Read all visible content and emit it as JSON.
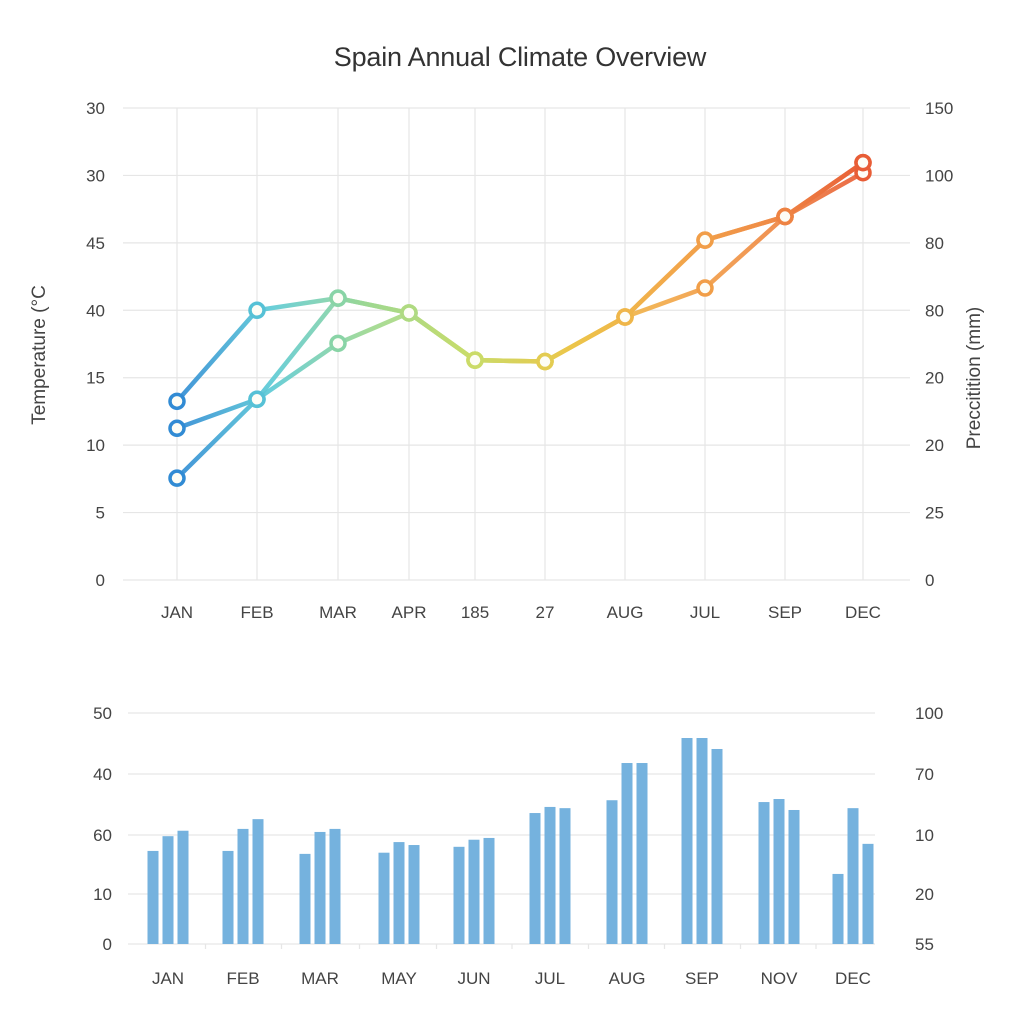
{
  "chart_data": [
    {
      "type": "line",
      "title": "Spain Annual Climate Overview",
      "ylabel": "Temperature (°C",
      "ylabel_right": "Preccitition (mm)",
      "xlabel": "",
      "grid": true,
      "legend": "none",
      "categories": [
        "JAN",
        "FEB",
        "MAR",
        "APR",
        "185",
        "27",
        "AUG",
        "JUL",
        "SEP",
        "DEC"
      ],
      "y_tick_labels_left": [
        "0",
        "5",
        "10",
        "15",
        "40",
        "45",
        "30",
        "30"
      ],
      "y_tick_labels_right": [
        "0",
        "25",
        "20",
        "20",
        "80",
        "80",
        "100",
        "150"
      ],
      "value_units": "grid index (0 = bottom tick, 7 = top tick)",
      "ylim": [
        0,
        7
      ],
      "series": [
        {
          "name": "series-1",
          "color_start": "#2e86d4",
          "values": [
            1.51,
            2.68,
            4.18,
            3.96,
            3.26,
            3.24,
            3.9,
            5.04,
            5.39,
            6.04
          ]
        },
        {
          "name": "series-2",
          "color_start": "#5ccad6",
          "values": [
            2.25,
            2.68,
            3.51,
            3.96,
            3.26,
            3.24,
            3.9,
            4.33,
            5.39,
            6.19
          ]
        },
        {
          "name": "series-3",
          "color_start": "#8fd49c",
          "values": [
            2.65,
            4.0,
            4.18,
            3.96,
            3.26,
            3.24,
            3.9,
            5.04,
            5.39,
            6.19
          ]
        }
      ],
      "gradient_colors": [
        "#2e86d4",
        "#5ccad6",
        "#9ed88f",
        "#c9dc6a",
        "#ecc64a",
        "#f2a84a",
        "#ef8a45",
        "#e85a35"
      ]
    },
    {
      "type": "bar",
      "title": "",
      "xlabel": "",
      "ylabel": "",
      "grid": true,
      "legend": "none",
      "categories": [
        "JAN",
        "FEB",
        "MAR",
        "MAY",
        "JUN",
        "JUL",
        "AUG",
        "SEP",
        "NOV",
        "DEC"
      ],
      "y_tick_labels_left": [
        "0",
        "10",
        "60",
        "40",
        "50"
      ],
      "y_tick_labels_right": [
        "55",
        "20",
        "10",
        "70",
        "100"
      ],
      "value_units": "grid index (0 = bottom tick, 4 = top tick)",
      "ylim": [
        0,
        4
      ],
      "bar_color": "#75b2de",
      "series": [
        {
          "name": "bar-1",
          "values": [
            1.73,
            1.73,
            1.68,
            1.7,
            1.8,
            2.36,
            2.57,
            3.59,
            2.54,
            1.34
          ]
        },
        {
          "name": "bar-2",
          "values": [
            1.98,
            2.1,
            2.05,
            1.88,
            1.92,
            2.46,
            3.18,
            3.59,
            2.59,
            2.44
          ]
        },
        {
          "name": "bar-3",
          "values": [
            2.07,
            2.26,
            2.1,
            1.83,
            1.95,
            2.44,
            3.18,
            3.41,
            2.41,
            1.85
          ]
        }
      ]
    }
  ]
}
